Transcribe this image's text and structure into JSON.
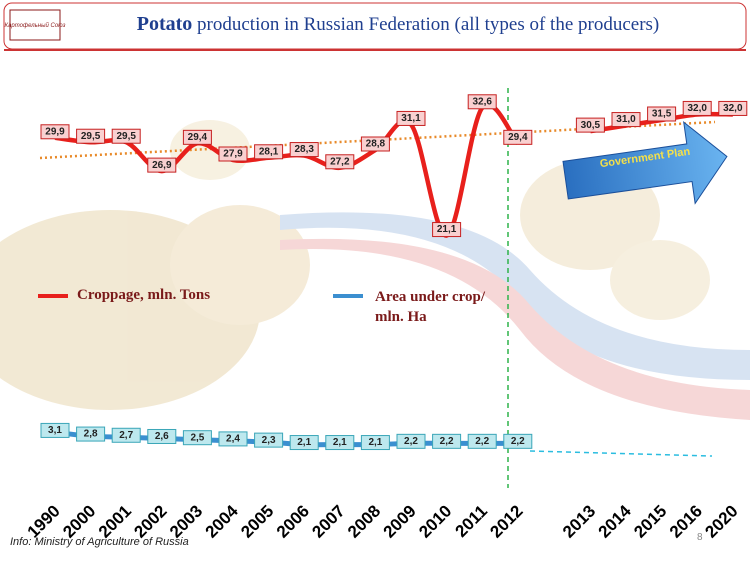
{
  "logo": "Картофельный Союз",
  "chart_data": {
    "type": "line",
    "title_emphasis": "Potato",
    "title": "production in Russian Federation  (all types of the producers)",
    "annotation": "Government Plan",
    "source": "Info: Ministry of Agriculture of Russia",
    "page_number": "8",
    "categories": [
      "1990",
      "2000",
      "2001",
      "2002",
      "2003",
      "2004",
      "2005",
      "2006",
      "2007",
      "2008",
      "2009",
      "2010",
      "2011",
      "2012",
      "2013",
      "2014",
      "2015",
      "2016",
      "2020"
    ],
    "ylim": [
      0,
      36
    ],
    "y2lim": [
      0,
      33
    ],
    "series": [
      {
        "name": "Croppage, mln. Tons",
        "color": "#e8201c",
        "values": [
          29.9,
          29.5,
          29.5,
          26.9,
          29.4,
          27.9,
          28.1,
          28.3,
          27.2,
          28.8,
          31.1,
          21.1,
          32.6,
          29.4,
          30.5,
          31.0,
          31.5,
          32.0,
          32.0
        ],
        "value_labels": [
          "29,9",
          "29,5",
          "29,5",
          "26,9",
          "29,4",
          "27,9",
          "28,1",
          "28,3",
          "27,2",
          "28,8",
          "31,1",
          "21,1",
          "32,6",
          "29,4",
          "30,5",
          "31,0",
          "31,5",
          "32,0",
          "32,0"
        ]
      },
      {
        "name": "Area under crop/ mln. Ha",
        "color": "#3b8fd0",
        "axis": "y2",
        "values": [
          3.1,
          2.8,
          2.7,
          2.6,
          2.5,
          2.4,
          2.3,
          2.1,
          2.1,
          2.1,
          2.2,
          2.2,
          2.2,
          2.2,
          null,
          null,
          null,
          null,
          null
        ],
        "value_labels": [
          "3,1",
          "2,8",
          "2,7",
          "2,6",
          "2,5",
          "2,4",
          "2,3",
          "2,1",
          "2,1",
          "2,1",
          "2,2",
          "2,2",
          "2,2",
          "2,2",
          null,
          null,
          null,
          null,
          null
        ]
      }
    ]
  }
}
